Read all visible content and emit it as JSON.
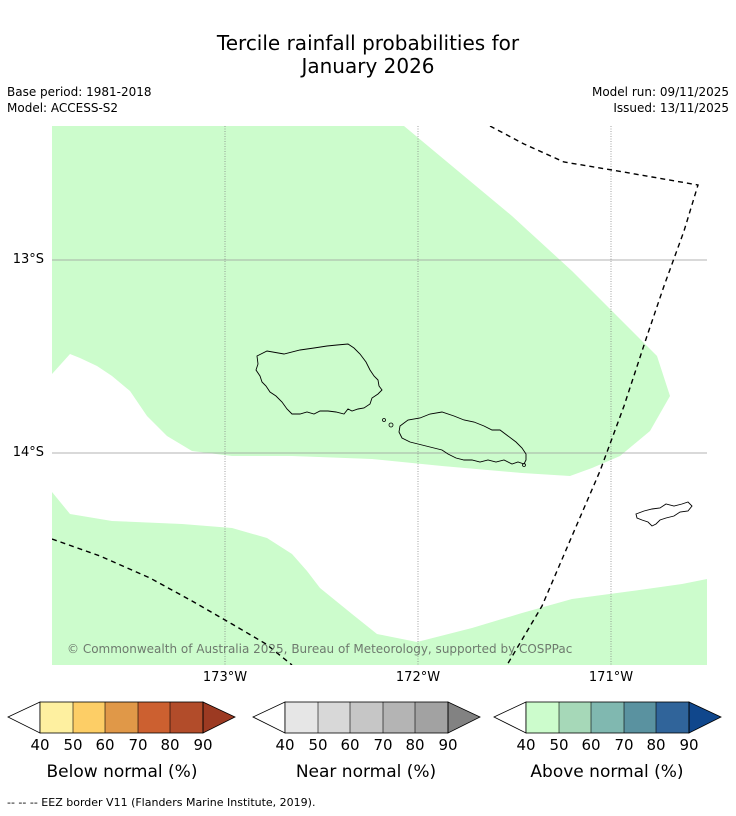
{
  "title": {
    "line1": "Tercile rainfall probabilities for",
    "line2": "January 2026"
  },
  "meta": {
    "base_period": "Base period: 1981-2018",
    "model": "Model: ACCESS-S2",
    "model_run": "Model run: 09/11/2025",
    "issued": "Issued: 13/11/2025"
  },
  "map": {
    "lat_labels": [
      "13°S",
      "14°S"
    ],
    "lon_labels": [
      "173°W",
      "172°W",
      "171°W"
    ],
    "copyright": "© Commonwealth of Australia 2025, Bureau of Meteorology, supported by COSPPac",
    "colors": {
      "above_40_50": "#ccfccc",
      "land_outline": "#000000",
      "gridline": "#8a8a8a",
      "eez": "#000000"
    }
  },
  "colorbars": [
    {
      "title": "Below normal (%)",
      "ticks": [
        "40",
        "50",
        "60",
        "70",
        "80",
        "90"
      ],
      "colors": [
        "#ffffff",
        "#fef0a0",
        "#fdce66",
        "#e09848",
        "#cc6030",
        "#b24c2a",
        "#9c3a22"
      ]
    },
    {
      "title": "Near normal (%)",
      "ticks": [
        "40",
        "50",
        "60",
        "70",
        "80",
        "90"
      ],
      "colors": [
        "#ffffff",
        "#e6e6e6",
        "#d8d8d8",
        "#c6c6c6",
        "#b4b4b4",
        "#a2a2a2",
        "#828282"
      ]
    },
    {
      "title": "Above normal (%)",
      "ticks": [
        "40",
        "50",
        "60",
        "70",
        "80",
        "90"
      ],
      "colors": [
        "#ffffff",
        "#ccfccc",
        "#a6d8b8",
        "#80b8b0",
        "#5a92a0",
        "#30649a",
        "#10478c"
      ]
    }
  ],
  "footer": "--  --  -- EEZ border V11 (Flanders Marine Institute, 2019)."
}
